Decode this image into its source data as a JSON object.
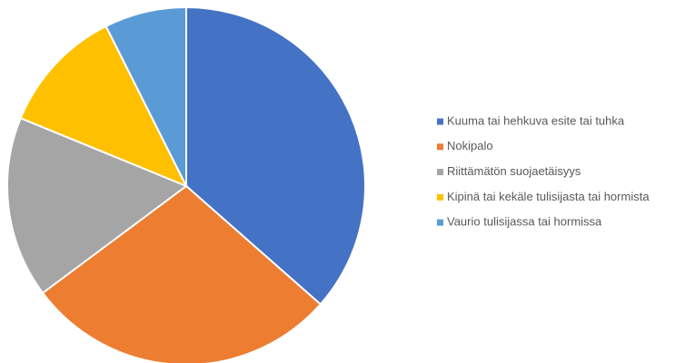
{
  "chart_data": {
    "type": "pie",
    "categories": [
      "Kuuma tai hehkuva esite tai tuhka",
      "Nokipalo",
      "Riittämätön suojaetäisyys",
      "Kipinä tai kekäle tulisijasta tai hormista",
      "Vaurio tulisijassa tai hormissa"
    ],
    "values": [
      36.5,
      28.3,
      16.4,
      11.4,
      7.4
    ],
    "colors": [
      "#4472c4",
      "#ed7d31",
      "#a5a5a5",
      "#ffc000",
      "#5b9bd5"
    ],
    "legend": "right"
  }
}
